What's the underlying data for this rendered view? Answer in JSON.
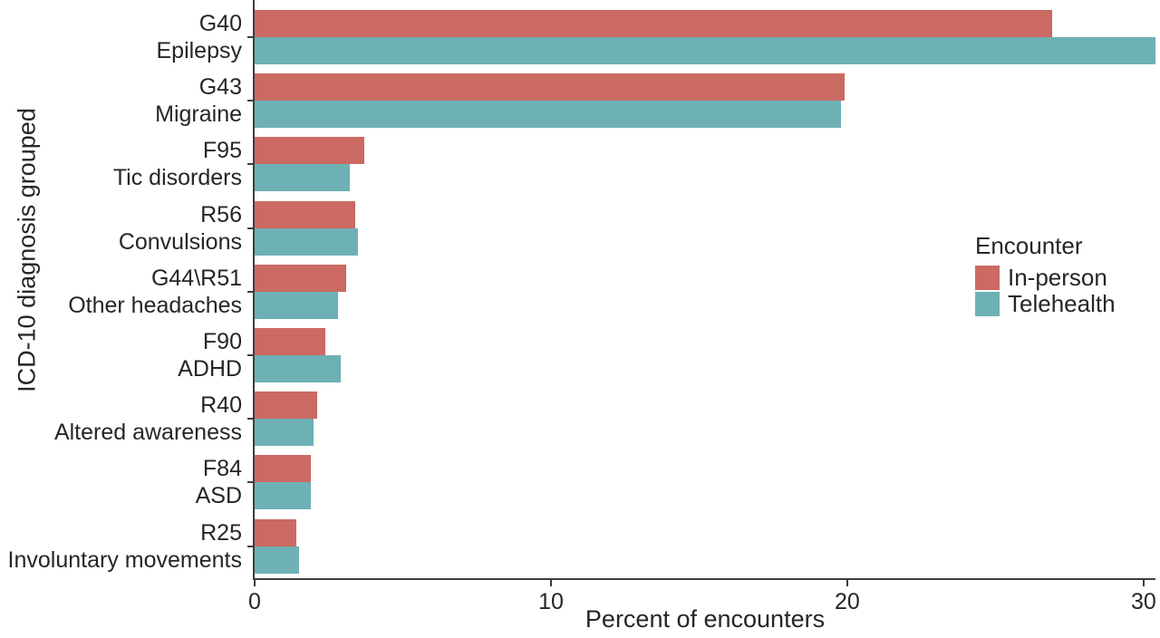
{
  "chart_data": {
    "type": "bar",
    "orientation": "horizontal",
    "title": "",
    "xlabel": "Percent of encounters",
    "ylabel": "ICD-10 diagnosis grouped",
    "xlim": [
      0,
      30.4
    ],
    "xticks": [
      0,
      10,
      20,
      30
    ],
    "grid": false,
    "legend": {
      "title": "Encounter",
      "position": "right-center"
    },
    "categories": [
      {
        "code": "G40",
        "name": "Epilepsy"
      },
      {
        "code": "G43",
        "name": "Migraine"
      },
      {
        "code": "F95",
        "name": "Tic disorders"
      },
      {
        "code": "R56",
        "name": "Convulsions"
      },
      {
        "code": "G44\\R51",
        "name": "Other headaches"
      },
      {
        "code": "F90",
        "name": "ADHD"
      },
      {
        "code": "R40",
        "name": "Altered awareness"
      },
      {
        "code": "F84",
        "name": "ASD"
      },
      {
        "code": "R25",
        "name": "Involuntary movements"
      }
    ],
    "series": [
      {
        "name": "In-person",
        "color": "#CB6A62",
        "values": [
          26.9,
          19.9,
          3.7,
          3.4,
          3.1,
          2.4,
          2.1,
          1.9,
          1.4
        ]
      },
      {
        "name": "Telehealth",
        "color": "#6DB1B5",
        "values": [
          30.4,
          19.8,
          3.2,
          3.5,
          2.8,
          2.9,
          2.0,
          1.9,
          1.5
        ]
      }
    ],
    "colors": {
      "axis": "#3d3d3d",
      "text": "#262626"
    }
  }
}
